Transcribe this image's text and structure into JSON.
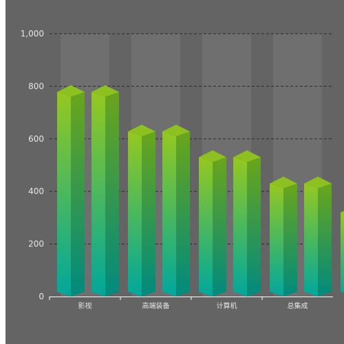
{
  "chart_data": {
    "type": "bar",
    "style": "3d-cylinder-pairs",
    "categories": [
      "影视",
      "高端装备",
      "计算机",
      "总集成",
      ""
    ],
    "series": [
      {
        "values": [
          778,
          628,
          530,
          430,
          320
        ]
      },
      {
        "values": [
          778,
          628,
          530,
          430,
          null
        ]
      }
    ],
    "background_bars": [
      1000,
      1000,
      1000,
      1000,
      null
    ],
    "yticks": [
      "0",
      "200",
      "400",
      "600",
      "800",
      "1,000"
    ],
    "ylim": [
      0,
      1000
    ],
    "grid": true,
    "colors": {
      "panel_bg": "#646464",
      "background_bar": "#6f6f6f",
      "bar_top": "#8dc21f",
      "bar_bottom": "#00a99d",
      "grid": "#2a2a2a",
      "axis": "#ffffff",
      "text": "#e6e6e6"
    }
  }
}
